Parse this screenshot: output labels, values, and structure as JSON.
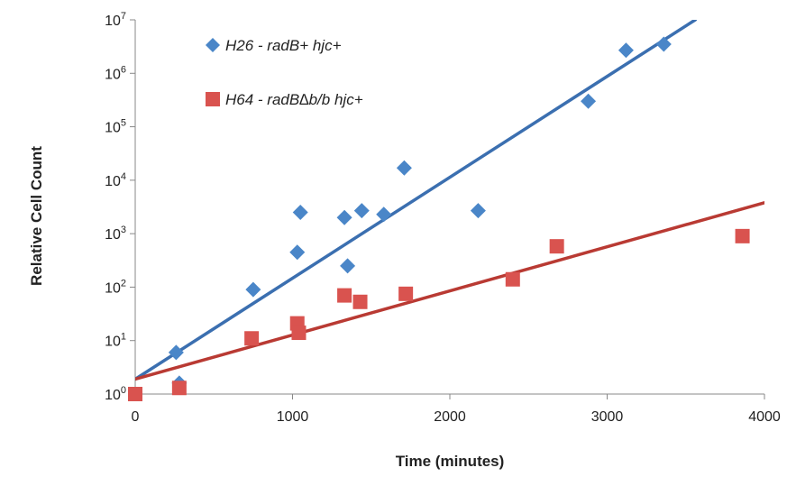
{
  "chart_data": {
    "type": "scatter",
    "xlabel": "Time (minutes)",
    "ylabel": "Relative Cell Count",
    "xlim": [
      0,
      4000
    ],
    "x_ticks": [
      0,
      1000,
      2000,
      3000,
      4000
    ],
    "y_scale": "log",
    "ylim": [
      1,
      10000000
    ],
    "y_ticks": [
      {
        "value": 1,
        "base": "10",
        "exp": "0"
      },
      {
        "value": 10,
        "base": "10",
        "exp": "1"
      },
      {
        "value": 100,
        "base": "10",
        "exp": "2"
      },
      {
        "value": 1000,
        "base": "10",
        "exp": "3"
      },
      {
        "value": 10000,
        "base": "10",
        "exp": "4"
      },
      {
        "value": 100000,
        "base": "10",
        "exp": "5"
      },
      {
        "value": 1000000,
        "base": "10",
        "exp": "6"
      },
      {
        "value": 10000000,
        "base": "10",
        "exp": "7"
      }
    ],
    "grid": false,
    "legend_position": "top-left",
    "series": [
      {
        "name": "H26 - radB+ hjc+",
        "marker": "diamond",
        "color": "#4a86c8",
        "line_color": "#3b6fb0",
        "points": [
          {
            "x": 260,
            "y": 6
          },
          {
            "x": 280,
            "y": 1.6
          },
          {
            "x": 750,
            "y": 90
          },
          {
            "x": 1030,
            "y": 450
          },
          {
            "x": 1050,
            "y": 2500
          },
          {
            "x": 1330,
            "y": 2000
          },
          {
            "x": 1350,
            "y": 250
          },
          {
            "x": 1440,
            "y": 2700
          },
          {
            "x": 1580,
            "y": 2300
          },
          {
            "x": 1710,
            "y": 17000
          },
          {
            "x": 2180,
            "y": 2700
          },
          {
            "x": 2880,
            "y": 300000
          },
          {
            "x": 3120,
            "y": 2700000
          },
          {
            "x": 3360,
            "y": 3500000
          }
        ],
        "trendline": {
          "x": [
            0,
            3560
          ],
          "y": [
            1.9,
            10000000
          ]
        }
      },
      {
        "name": "H64 - radB∆b/b hjc+",
        "marker": "square",
        "color": "#d9534f",
        "line_color": "#b93a33",
        "points": [
          {
            "x": 0,
            "y": 1
          },
          {
            "x": 280,
            "y": 1.3
          },
          {
            "x": 740,
            "y": 11
          },
          {
            "x": 1030,
            "y": 21
          },
          {
            "x": 1040,
            "y": 14
          },
          {
            "x": 1330,
            "y": 70
          },
          {
            "x": 1430,
            "y": 53
          },
          {
            "x": 1720,
            "y": 75
          },
          {
            "x": 2400,
            "y": 140
          },
          {
            "x": 2680,
            "y": 580
          },
          {
            "x": 3860,
            "y": 900
          }
        ],
        "trendline": {
          "x": [
            0,
            4000
          ],
          "y": [
            1.9,
            3800
          ]
        }
      }
    ]
  }
}
